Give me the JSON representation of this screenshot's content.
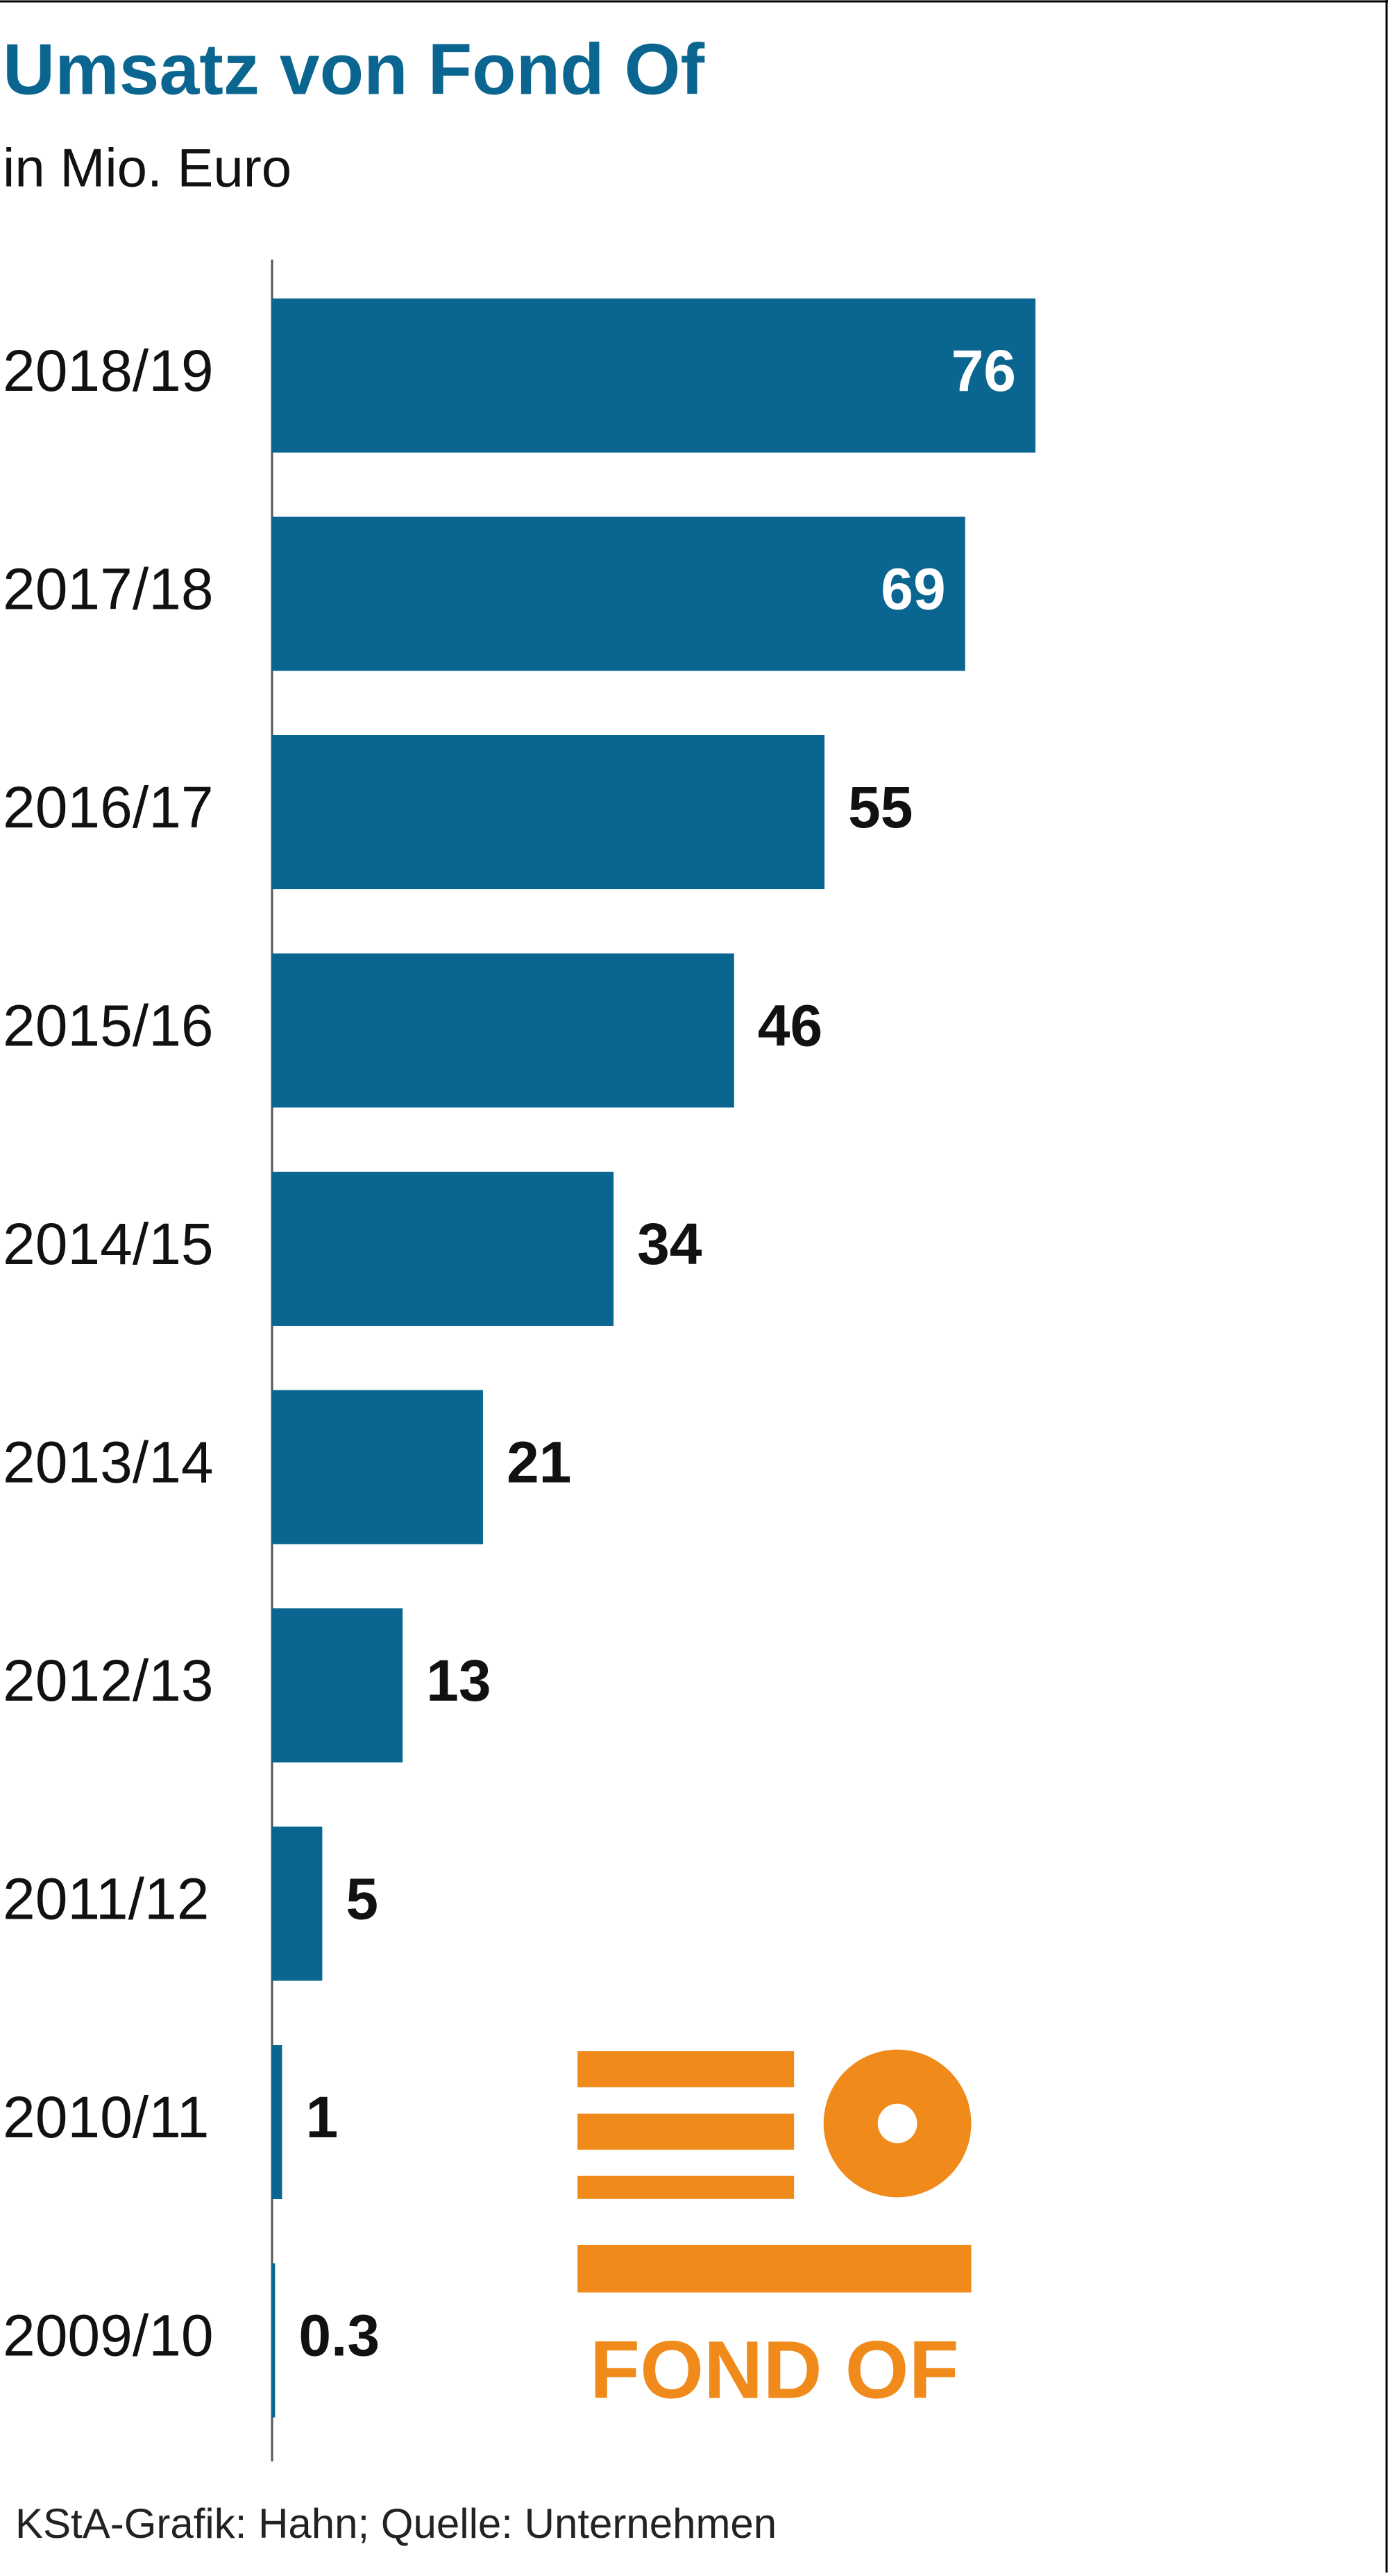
{
  "chart_data": {
    "type": "barh",
    "title": "Umsatz von Fond Of",
    "subtitle": "in Mio. Euro",
    "categories": [
      "2018/19",
      "2017/18",
      "2016/17",
      "2015/16",
      "2014/15",
      "2013/14",
      "2012/13",
      "2011/12",
      "2010/11",
      "2009/10"
    ],
    "values": [
      76,
      69,
      55,
      46,
      34,
      21,
      13,
      5,
      1,
      0.3
    ],
    "color": "#0a6690",
    "xlim": [
      0,
      76
    ],
    "logo_text": "FOND OF",
    "source": "KStA-Grafik: Hahn; Quelle: Unternehmen"
  }
}
